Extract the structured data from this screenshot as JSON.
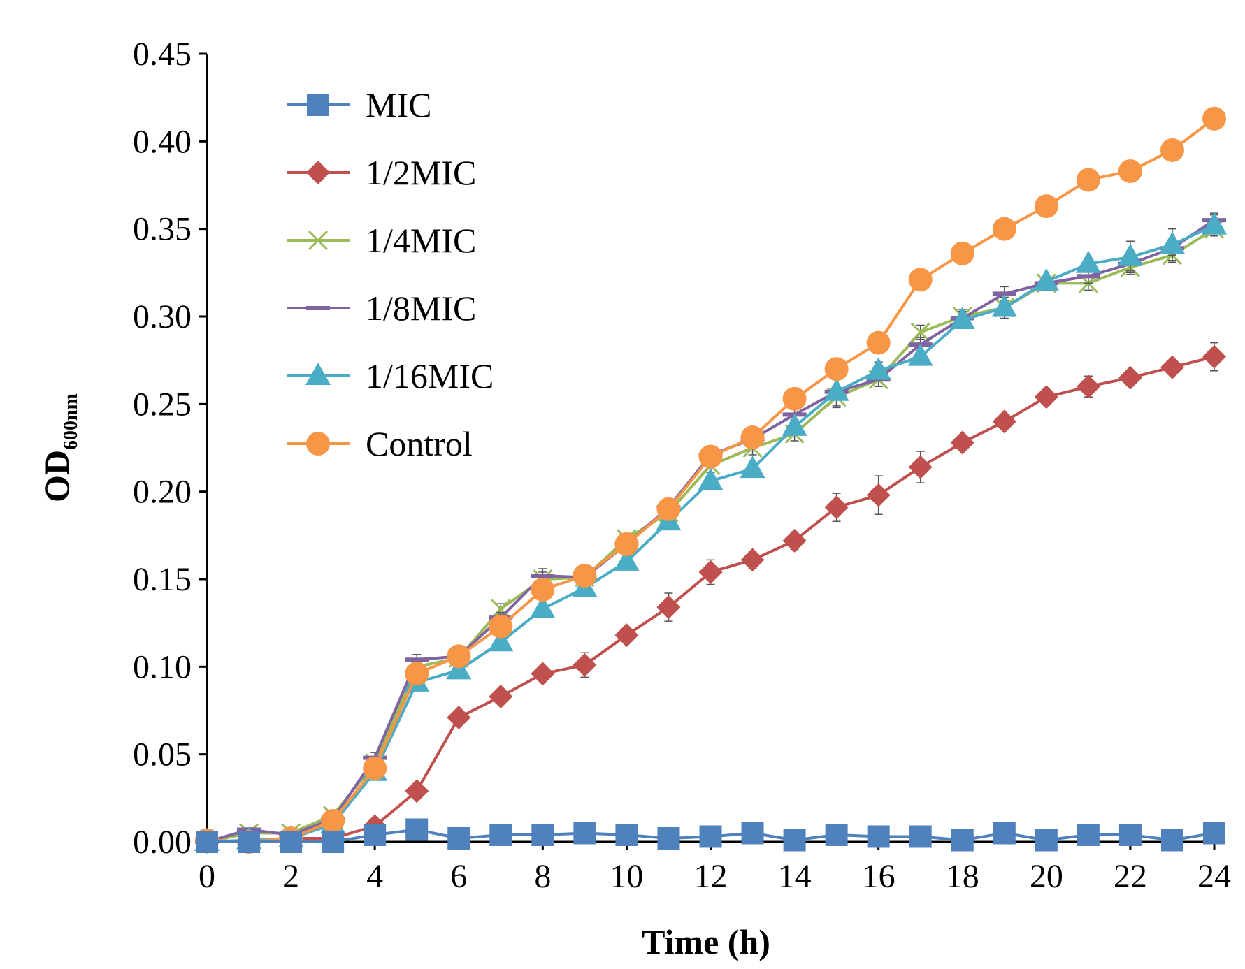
{
  "chart_data": {
    "type": "line",
    "title": "",
    "xlabel": "Time (h)",
    "ylabel": {
      "main": "OD",
      "subscript": "600nm"
    },
    "xlim": [
      0,
      24
    ],
    "ylim": [
      0,
      0.45
    ],
    "xticks": [
      0,
      2,
      4,
      6,
      8,
      10,
      12,
      14,
      16,
      18,
      20,
      22,
      24
    ],
    "yticks": [
      0,
      0.05,
      0.1,
      0.15,
      0.2,
      0.25,
      0.3,
      0.35,
      0.4,
      0.45
    ],
    "ytick_labels": [
      "0.00",
      "0.05",
      "0.10",
      "0.15",
      "0.20",
      "0.25",
      "0.30",
      "0.35",
      "0.40",
      "0.45"
    ],
    "xtick_labels": [
      "0",
      "2",
      "4",
      "6",
      "8",
      "10",
      "12",
      "14",
      "16",
      "18",
      "20",
      "22",
      "24"
    ],
    "grid": false,
    "legend_position": "top-left",
    "x": [
      0,
      1,
      2,
      3,
      4,
      5,
      6,
      7,
      8,
      9,
      10,
      11,
      12,
      13,
      14,
      15,
      16,
      17,
      18,
      19,
      20,
      21,
      22,
      23,
      24
    ],
    "series": [
      {
        "name": "MIC",
        "color": "#4f81bd",
        "marker": "square",
        "values": [
          0,
          0,
          0,
          0,
          0.004,
          0.007,
          0.002,
          0.004,
          0.004,
          0.005,
          0.004,
          0.002,
          0.003,
          0.005,
          0.001,
          0.004,
          0.003,
          0.003,
          0.001,
          0.005,
          0.001,
          0.004,
          0.004,
          0.001,
          0.005
        ],
        "errors": [
          0,
          0,
          0,
          0,
          0.001,
          0.001,
          0.001,
          0.001,
          0.001,
          0.001,
          0.001,
          0.001,
          0.001,
          0.001,
          0.001,
          0.001,
          0.001,
          0.001,
          0.001,
          0.001,
          0.001,
          0.001,
          0.001,
          0.001,
          0.001
        ]
      },
      {
        "name": "1/2MIC",
        "color": "#c0504d",
        "marker": "diamond",
        "values": [
          0,
          0,
          0.002,
          0.002,
          0.009,
          0.029,
          0.071,
          0.083,
          0.096,
          0.101,
          0.118,
          0.134,
          0.154,
          0.161,
          0.172,
          0.191,
          0.198,
          0.214,
          0.228,
          0.24,
          0.254,
          0.26,
          0.265,
          0.271,
          0.277
        ],
        "errors": [
          0,
          0,
          0,
          0,
          0.002,
          0.003,
          0.003,
          0.003,
          0.003,
          0.007,
          0.003,
          0.008,
          0.007,
          0.005,
          0.005,
          0.008,
          0.011,
          0.009,
          0.004,
          0.003,
          0.003,
          0.006,
          0.003,
          0.003,
          0.008
        ]
      },
      {
        "name": "1/4MIC",
        "color": "#9bbb59",
        "marker": "cross",
        "values": [
          0,
          0.005,
          0.005,
          0.015,
          0.045,
          0.1,
          0.105,
          0.133,
          0.15,
          0.151,
          0.173,
          0.188,
          0.215,
          0.225,
          0.233,
          0.254,
          0.264,
          0.291,
          0.3,
          0.305,
          0.319,
          0.319,
          0.328,
          0.335,
          0.35
        ],
        "errors": [
          0,
          0.001,
          0.001,
          0.002,
          0.003,
          0.003,
          0.004,
          0.003,
          0.004,
          0.004,
          0.003,
          0.004,
          0.004,
          0.004,
          0.004,
          0.006,
          0.004,
          0.004,
          0.004,
          0.004,
          0.004,
          0.004,
          0.004,
          0.004,
          0.004
        ]
      },
      {
        "name": "1/8MIC",
        "color": "#8064a2",
        "marker": "dash",
        "values": [
          0,
          0.007,
          0.004,
          0.013,
          0.048,
          0.104,
          0.106,
          0.128,
          0.152,
          0.151,
          0.17,
          0.191,
          0.221,
          0.23,
          0.244,
          0.257,
          0.264,
          0.284,
          0.299,
          0.313,
          0.319,
          0.323,
          0.33,
          0.339,
          0.355
        ],
        "errors": [
          0,
          0.001,
          0.001,
          0.002,
          0.003,
          0.003,
          0.003,
          0.003,
          0.004,
          0.003,
          0.003,
          0.003,
          0.003,
          0.003,
          0.003,
          0.008,
          0.004,
          0.004,
          0.004,
          0.004,
          0.004,
          0.004,
          0.004,
          0.004,
          0.004
        ]
      },
      {
        "name": "1/16MIC",
        "color": "#4bacc6",
        "marker": "triangle",
        "values": [
          0,
          0.001,
          0.002,
          0.01,
          0.04,
          0.091,
          0.098,
          0.114,
          0.133,
          0.145,
          0.16,
          0.183,
          0.206,
          0.213,
          0.237,
          0.257,
          0.269,
          0.277,
          0.298,
          0.305,
          0.32,
          0.33,
          0.334,
          0.341,
          0.352
        ],
        "errors": [
          0,
          0.001,
          0.001,
          0.002,
          0.003,
          0.003,
          0.003,
          0.003,
          0.003,
          0.003,
          0.003,
          0.003,
          0.003,
          0.003,
          0.003,
          0.003,
          0.005,
          0.003,
          0.003,
          0.006,
          0.003,
          0.003,
          0.009,
          0.009,
          0.006
        ]
      },
      {
        "name": "Control",
        "color": "#f79646",
        "marker": "circle",
        "values": [
          0.001,
          0,
          0.002,
          0.012,
          0.042,
          0.096,
          0.106,
          0.123,
          0.144,
          0.152,
          0.17,
          0.19,
          0.22,
          0.231,
          0.253,
          0.27,
          0.285,
          0.321,
          0.336,
          0.35,
          0.363,
          0.378,
          0.383,
          0.395,
          0.413
        ],
        "errors": [
          0,
          0,
          0,
          0.002,
          0.003,
          0.003,
          0.003,
          0.003,
          0.003,
          0.003,
          0.003,
          0.003,
          0.003,
          0.003,
          0.003,
          0.003,
          0.003,
          0.003,
          0.003,
          0.003,
          0.003,
          0.003,
          0.003,
          0.003,
          0.003
        ]
      }
    ]
  }
}
